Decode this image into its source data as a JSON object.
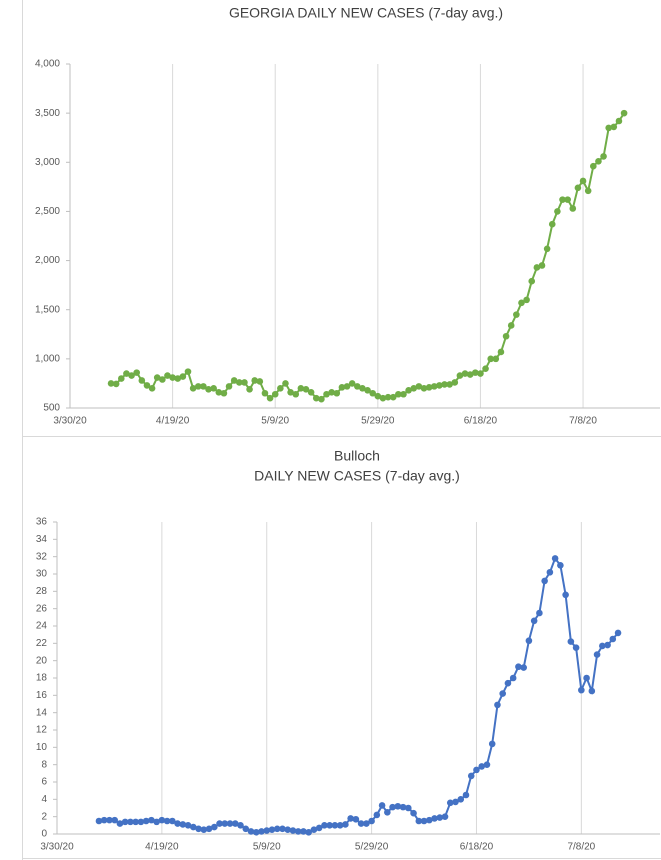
{
  "chart_data": [
    {
      "type": "line",
      "title": "GEORGIA DAILY NEW CASES (7-day avg.)",
      "color": "#70ad47",
      "grid": "x",
      "xlim": [
        "3/30/20",
        "7/23/20"
      ],
      "xticks": [
        "3/30/20",
        "4/19/20",
        "5/9/20",
        "5/29/20",
        "6/18/20",
        "7/8/20"
      ],
      "ylim": [
        500,
        4000
      ],
      "yticks": [
        500,
        {
          "value": 1000,
          "label": "1,000"
        },
        {
          "value": 1500,
          "label": "1,500"
        },
        {
          "value": 2000,
          "label": "2,000"
        },
        {
          "value": 2500,
          "label": "2,500"
        },
        {
          "value": 3000,
          "label": "3,000"
        },
        {
          "value": 3500,
          "label": "3,500"
        },
        {
          "value": 4000,
          "label": "4,000"
        }
      ],
      "x": [
        "4/7/20",
        "4/8/20",
        "4/9/20",
        "4/10/20",
        "4/11/20",
        "4/12/20",
        "4/13/20",
        "4/14/20",
        "4/15/20",
        "4/16/20",
        "4/17/20",
        "4/18/20",
        "4/19/20",
        "4/20/20",
        "4/21/20",
        "4/22/20",
        "4/23/20",
        "4/24/20",
        "4/25/20",
        "4/26/20",
        "4/27/20",
        "4/28/20",
        "4/29/20",
        "4/30/20",
        "5/1/20",
        "5/2/20",
        "5/3/20",
        "5/4/20",
        "5/5/20",
        "5/6/20",
        "5/7/20",
        "5/8/20",
        "5/9/20",
        "5/10/20",
        "5/11/20",
        "5/12/20",
        "5/13/20",
        "5/14/20",
        "5/15/20",
        "5/16/20",
        "5/17/20",
        "5/18/20",
        "5/19/20",
        "5/20/20",
        "5/21/20",
        "5/22/20",
        "5/23/20",
        "5/24/20",
        "5/25/20",
        "5/26/20",
        "5/27/20",
        "5/28/20",
        "5/29/20",
        "5/30/20",
        "5/31/20",
        "6/1/20",
        "6/2/20",
        "6/3/20",
        "6/4/20",
        "6/5/20",
        "6/6/20",
        "6/7/20",
        "6/8/20",
        "6/9/20",
        "6/10/20",
        "6/11/20",
        "6/12/20",
        "6/13/20",
        "6/14/20",
        "6/15/20",
        "6/16/20",
        "6/17/20",
        "6/18/20",
        "6/19/20",
        "6/20/20",
        "6/21/20",
        "6/22/20",
        "6/23/20",
        "6/24/20",
        "6/25/20",
        "6/26/20",
        "6/27/20",
        "6/28/20",
        "6/29/20",
        "6/30/20",
        "7/1/20",
        "7/2/20",
        "7/3/20",
        "7/4/20",
        "7/5/20",
        "7/6/20",
        "7/7/20",
        "7/8/20",
        "7/9/20",
        "7/10/20",
        "7/11/20",
        "7/12/20",
        "7/13/20",
        "7/14/20",
        "7/15/20",
        "7/16/20"
      ],
      "values": [
        750,
        745,
        800,
        850,
        830,
        860,
        780,
        730,
        700,
        810,
        790,
        830,
        810,
        800,
        820,
        870,
        700,
        720,
        720,
        690,
        700,
        660,
        650,
        720,
        780,
        760,
        760,
        690,
        780,
        770,
        650,
        600,
        640,
        700,
        750,
        660,
        640,
        700,
        690,
        660,
        600,
        590,
        640,
        660,
        650,
        710,
        720,
        750,
        720,
        700,
        680,
        650,
        620,
        600,
        610,
        610,
        640,
        640,
        680,
        700,
        720,
        700,
        710,
        720,
        730,
        740,
        740,
        760,
        830,
        850,
        840,
        860,
        850,
        900,
        1000,
        1000,
        1070,
        1230,
        1340,
        1450,
        1570,
        1600,
        1790,
        1930,
        1950,
        2120,
        2370,
        2500,
        2620,
        2620,
        2530,
        2740,
        2810,
        2710,
        2960,
        3010,
        3060,
        3350,
        3360,
        3420,
        3500
      ]
    },
    {
      "type": "line",
      "title": "Bulloch",
      "subtitle": "DAILY NEW CASES (7-day avg.)",
      "color": "#4472c4",
      "grid": "x",
      "xlim": [
        "3/30/20",
        "7/23/20"
      ],
      "xticks": [
        "3/30/20",
        "4/19/20",
        "5/9/20",
        "5/29/20",
        "6/18/20",
        "7/8/20"
      ],
      "ylim": [
        0,
        36
      ],
      "yticks": [
        0,
        2,
        4,
        6,
        8,
        10,
        12,
        14,
        16,
        18,
        20,
        22,
        24,
        26,
        28,
        30,
        32,
        34,
        36
      ],
      "x": [
        "4/7/20",
        "4/8/20",
        "4/9/20",
        "4/10/20",
        "4/11/20",
        "4/12/20",
        "4/13/20",
        "4/14/20",
        "4/15/20",
        "4/16/20",
        "4/17/20",
        "4/18/20",
        "4/19/20",
        "4/20/20",
        "4/21/20",
        "4/22/20",
        "4/23/20",
        "4/24/20",
        "4/25/20",
        "4/26/20",
        "4/27/20",
        "4/28/20",
        "4/29/20",
        "4/30/20",
        "5/1/20",
        "5/2/20",
        "5/3/20",
        "5/4/20",
        "5/5/20",
        "5/6/20",
        "5/7/20",
        "5/8/20",
        "5/9/20",
        "5/10/20",
        "5/11/20",
        "5/12/20",
        "5/13/20",
        "5/14/20",
        "5/15/20",
        "5/16/20",
        "5/17/20",
        "5/18/20",
        "5/19/20",
        "5/20/20",
        "5/21/20",
        "5/22/20",
        "5/23/20",
        "5/24/20",
        "5/25/20",
        "5/26/20",
        "5/27/20",
        "5/28/20",
        "5/29/20",
        "5/30/20",
        "5/31/20",
        "6/1/20",
        "6/2/20",
        "6/3/20",
        "6/4/20",
        "6/5/20",
        "6/6/20",
        "6/7/20",
        "6/8/20",
        "6/9/20",
        "6/10/20",
        "6/11/20",
        "6/12/20",
        "6/13/20",
        "6/14/20",
        "6/15/20",
        "6/16/20",
        "6/17/20",
        "6/18/20",
        "6/19/20",
        "6/20/20",
        "6/21/20",
        "6/22/20",
        "6/23/20",
        "6/24/20",
        "6/25/20",
        "6/26/20",
        "6/27/20",
        "6/28/20",
        "6/29/20",
        "6/30/20",
        "7/1/20",
        "7/2/20",
        "7/3/20",
        "7/4/20",
        "7/5/20",
        "7/6/20",
        "7/7/20",
        "7/8/20",
        "7/9/20",
        "7/10/20",
        "7/11/20",
        "7/12/20",
        "7/13/20",
        "7/14/20",
        "7/15/20"
      ],
      "values": [
        1.5,
        1.6,
        1.6,
        1.6,
        1.2,
        1.4,
        1.4,
        1.4,
        1.4,
        1.5,
        1.6,
        1.4,
        1.6,
        1.5,
        1.5,
        1.2,
        1.1,
        1.0,
        0.8,
        0.6,
        0.5,
        0.6,
        0.8,
        1.2,
        1.2,
        1.2,
        1.2,
        1.0,
        0.6,
        0.3,
        0.2,
        0.3,
        0.4,
        0.5,
        0.6,
        0.6,
        0.5,
        0.4,
        0.3,
        0.3,
        0.2,
        0.5,
        0.7,
        1.0,
        1.0,
        1.0,
        1.0,
        1.1,
        1.8,
        1.7,
        1.2,
        1.2,
        1.5,
        2.2,
        3.3,
        2.5,
        3.1,
        3.2,
        3.1,
        3.0,
        2.4,
        1.5,
        1.5,
        1.6,
        1.8,
        1.9,
        2.0,
        3.6,
        3.7,
        4.0,
        4.5,
        6.7,
        7.4,
        7.8,
        8.0,
        10.4,
        14.9,
        16.2,
        17.4,
        18.0,
        19.3,
        19.2,
        22.3,
        24.6,
        25.5,
        29.2,
        30.2,
        31.8,
        31.0,
        27.6,
        22.2,
        21.5,
        16.6,
        18.0,
        16.5,
        20.7,
        21.7,
        21.8,
        22.5,
        23.2
      ]
    }
  ]
}
